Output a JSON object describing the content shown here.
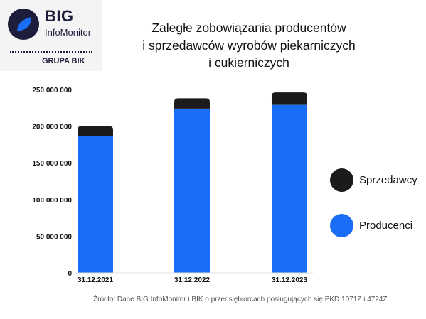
{
  "logo": {
    "brand": "BIG",
    "name": "InfoMonitor",
    "group": "GRUPA BIK"
  },
  "chart_data": {
    "type": "bar",
    "stacked": true,
    "title_lines": [
      "Zaległe zobowiązania producentów",
      "i sprzedawców wyrobów piekarniczych",
      "i cukierniczych"
    ],
    "categories": [
      "31.12.2021",
      "31.12.2022",
      "31.12.2023"
    ],
    "series": [
      {
        "name": "Producenci",
        "color": "#1a6ef5",
        "values": [
          187000000,
          224000000,
          229000000
        ]
      },
      {
        "name": "Sprzedawcy",
        "color": "#1b1b1b",
        "values": [
          13000000,
          14000000,
          17000000
        ]
      }
    ],
    "ylim": [
      0,
      250000000
    ],
    "yticks": [
      0,
      50000000,
      100000000,
      150000000,
      200000000,
      250000000
    ],
    "ytick_labels": [
      "0",
      "50 000 000",
      "100 000 000",
      "150 000 000",
      "200 000 000",
      "250 000 000"
    ],
    "grid": false,
    "legend_position": "right"
  },
  "source": "Źródło: Dane BIG InfoMonitor i BIK o przedsiębiorcach posługujących się PKD 1071Z i 4724Z"
}
